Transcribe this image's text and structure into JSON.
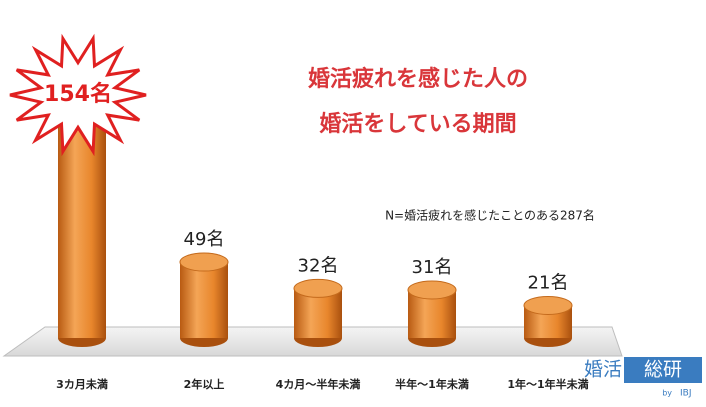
{
  "chart_data": {
    "type": "bar",
    "title_lines": [
      "婚活疲れを感じた人の",
      "婚活をしている期間"
    ],
    "annotation": "N=婚活疲れを感じたことのある287名",
    "categories": [
      "3カ月未満",
      "2年以上",
      "4カ月〜半年未満",
      "半年〜1年未満",
      "1年〜1年半未満"
    ],
    "values": [
      154,
      49,
      32,
      31,
      21
    ],
    "value_labels": [
      "154名",
      "49名",
      "32名",
      "31名",
      "21名"
    ],
    "color": "#e8862c",
    "title_color": "#d9363a"
  },
  "logo": {
    "left": "婚活",
    "right": "総研",
    "by": "by",
    "brand": "IBJ"
  }
}
